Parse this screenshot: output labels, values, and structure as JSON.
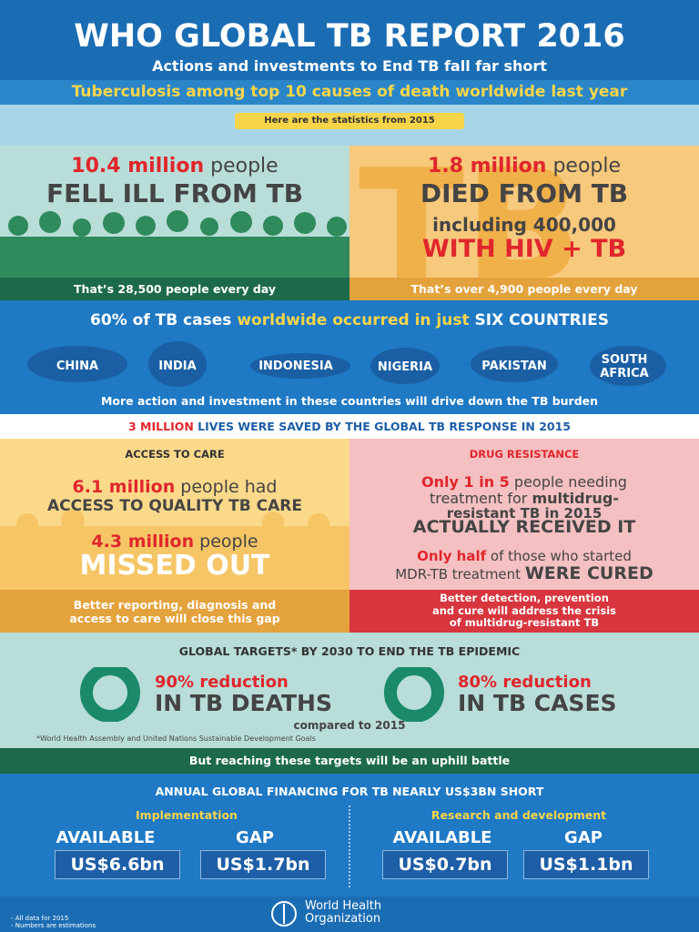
{
  "header": {
    "title": "WHO GLOBAL TB REPORT 2016",
    "subtitle": "Actions and investments to End TB fall far short",
    "tagline": "Tuberculosis among top 10 causes of death worldwide last year",
    "note": "Here are the statistics from 2015"
  },
  "fell_ill": {
    "highlight": "10.4 million",
    "rest": "people",
    "headline": "FELL ILL FROM TB",
    "footer": "That’s 28,500 people every day"
  },
  "died": {
    "highlight": "1.8 million",
    "rest": "people",
    "headline": "DIED FROM TB",
    "hiv_line1": "including 400,000",
    "hiv_line2": "WITH HIV + TB",
    "footer": "That’s over 4,900 people every day",
    "backdrop": "TB"
  },
  "countries": {
    "lead": "60% of TB cases",
    "mid": "worldwide occurred in just",
    "end": "SIX COUNTRIES",
    "list": [
      "CHINA",
      "INDIA",
      "INDONESIA",
      "NIGERIA",
      "PAKISTAN",
      "SOUTH AFRICA"
    ],
    "footer": "More action and investment in these countries will drive down the TB burden"
  },
  "saved": {
    "highlight": "3 MILLION",
    "rest": "LIVES WERE SAVED BY THE GLOBAL TB RESPONSE IN 2015"
  },
  "access": {
    "heading": "ACCESS TO CARE",
    "line1_highlight": "6.1 million",
    "line1_rest": "people had",
    "line2": "ACCESS TO QUALITY TB CARE",
    "line3_highlight": "4.3 million",
    "line3_rest": "people",
    "line4": "MISSED OUT",
    "footer": [
      "Better reporting, diagnosis and",
      "access to care will close this gap"
    ]
  },
  "drug": {
    "heading": "DRUG RESISTANCE",
    "line1_highlight": "Only 1 in 5",
    "line1_rest": "people needing",
    "line2_a": "treatment for",
    "line2_b": "multidrug-",
    "line3": "resistant TB in 2015",
    "line4": "ACTUALLY RECEIVED IT",
    "line5_highlight": "Only half",
    "line5_rest": "of those who started",
    "line6_a": "MDR-TB treatment",
    "line6_b": "WERE CURED",
    "footer": [
      "Better detection, prevention",
      "and cure will address the crisis",
      "of multidrug-resistant TB"
    ]
  },
  "targets": {
    "heading": "GLOBAL TARGETS* BY 2030 TO END THE TB EPIDEMIC",
    "items": [
      {
        "highlight": "90% reduction",
        "text": "IN TB DEATHS"
      },
      {
        "highlight": "80% reduction",
        "text": "IN TB CASES"
      }
    ],
    "compared": "compared to 2015",
    "footnote": "*World Health Assembly and United Nations Sustainable Development Goals",
    "banner": "But reaching these targets will be an uphill battle"
  },
  "financing": {
    "heading": "ANNUAL GLOBAL FINANCING FOR TB NEARLY US$3BN SHORT",
    "groups": [
      {
        "name": "Implementation",
        "available_label": "AVAILABLE",
        "available": "US$6.6bn",
        "gap_label": "GAP",
        "gap": "US$1.7bn"
      },
      {
        "name": "Research and development",
        "available_label": "AVAILABLE",
        "available": "US$0.7bn",
        "gap_label": "GAP",
        "gap": "US$1.1bn"
      }
    ]
  },
  "footer": {
    "notes": [
      "- All data for 2015",
      "- Numbers are estimations"
    ],
    "org": [
      "World Health",
      "Organization"
    ]
  }
}
